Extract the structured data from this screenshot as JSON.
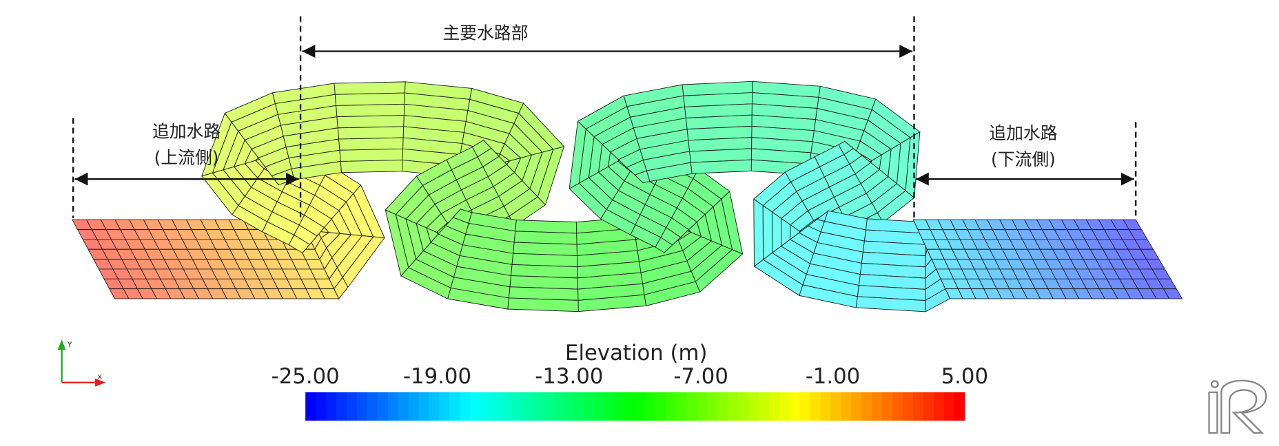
{
  "labels": {
    "main": "主要水路部",
    "upstream": [
      "追加水路",
      "(上流側)"
    ],
    "downstream": [
      "追加水路",
      "(下流側)"
    ]
  },
  "axes": {
    "y": "Y",
    "x": "x"
  },
  "colorbar": {
    "title": "Elevation (m)",
    "min": -25,
    "max": 5,
    "ticks": [
      {
        "value": -25,
        "label": "-25.00"
      },
      {
        "value": -19,
        "label": "-19.00"
      },
      {
        "value": -13,
        "label": "-13.00"
      },
      {
        "value": -7,
        "label": "-7.00"
      },
      {
        "value": -1,
        "label": "-1.00"
      },
      {
        "value": 5,
        "label": "5.00"
      }
    ]
  }
}
